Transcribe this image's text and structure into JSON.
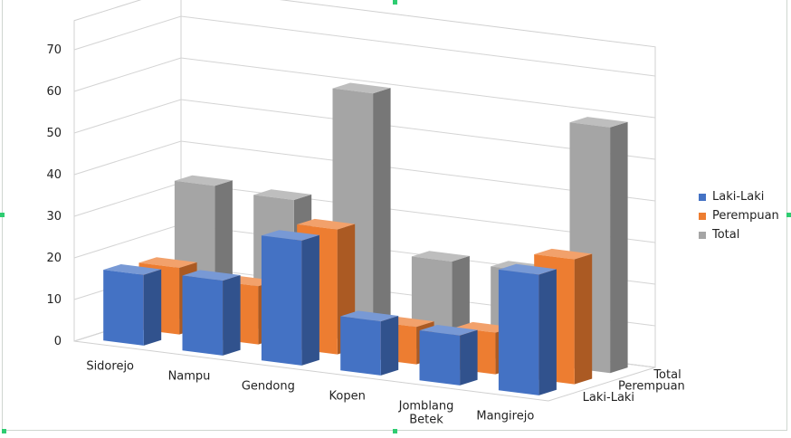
{
  "chart_data": {
    "type": "bar",
    "subtype": "3d-column",
    "title": "",
    "xlabel": "",
    "ylabel": "",
    "ylim": [
      0,
      70
    ],
    "yticks": [
      "0",
      "10",
      "20",
      "30",
      "40",
      "50",
      "60",
      "70"
    ],
    "categories": [
      "Sidorejo",
      "Nampu",
      "Gendong",
      "Kopen",
      "Jomblang Betek",
      "Mangirejo"
    ],
    "depth_labels": [
      "Laki-Laki",
      "Perempuan",
      "Total"
    ],
    "series": [
      {
        "name": "Laki-Laki",
        "color": "#4472C4",
        "values": [
          17,
          18,
          30,
          13,
          12,
          29
        ]
      },
      {
        "name": "Perempuan",
        "color": "#ED7D31",
        "values": [
          16,
          14,
          30,
          9,
          10,
          30
        ]
      },
      {
        "name": "Total",
        "color": "#A5A5A5",
        "values": [
          33,
          32,
          60,
          22,
          22,
          59
        ]
      }
    ],
    "grid": true,
    "legend_position": "right"
  }
}
